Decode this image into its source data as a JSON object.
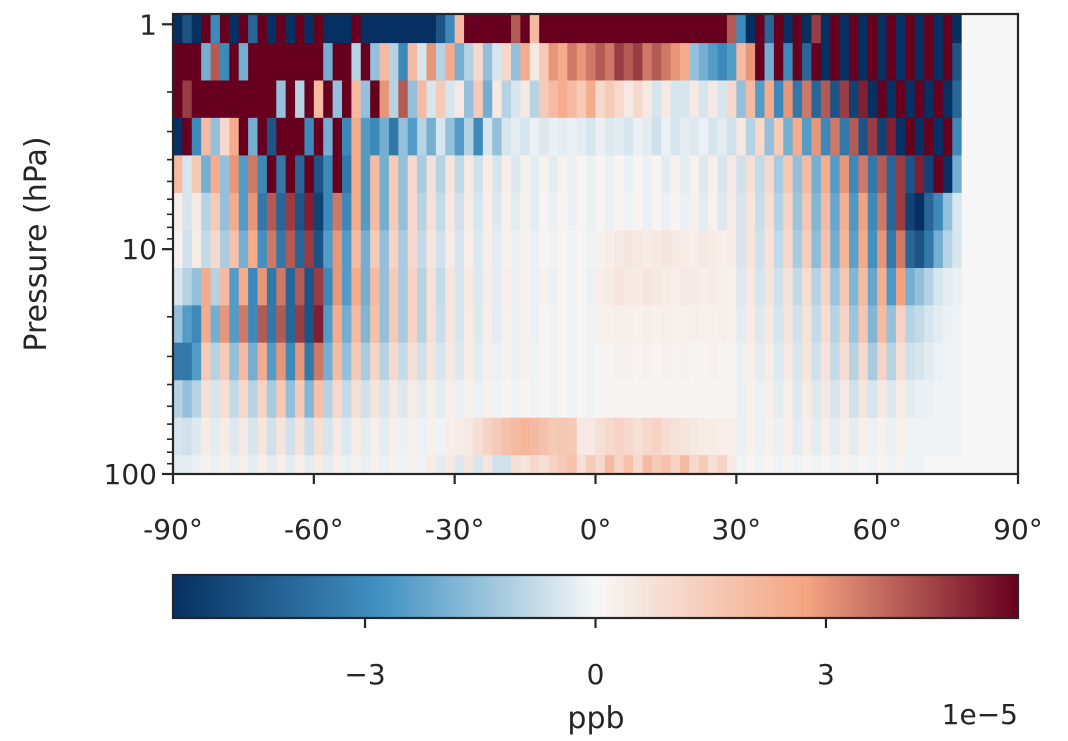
{
  "chart_data": {
    "type": "heatmap",
    "title": "",
    "xlabel": "",
    "ylabel": "Pressure (hPa)",
    "colorbar_label": "ppb",
    "colorbar_scale_text": "1e−5",
    "colormap": "RdBu_r",
    "colors": {
      "neg_max": "#053061",
      "neg_mid": "#4393c3",
      "neutral": "#f7f7f7",
      "pos_mid": "#f4a582",
      "pos_max": "#67001f"
    },
    "xlim": [
      -90,
      90
    ],
    "ylim": [
      100,
      0.9
    ],
    "yscale": "log",
    "vlim": [
      -5.5,
      5.5
    ],
    "value_scale": 1e-05,
    "x_ticks": [
      {
        "value": -90,
        "label": "-90°"
      },
      {
        "value": -60,
        "label": "-60°"
      },
      {
        "value": -30,
        "label": "-30°"
      },
      {
        "value": 0,
        "label": "0°"
      },
      {
        "value": 30,
        "label": "30°"
      },
      {
        "value": 60,
        "label": "60°"
      },
      {
        "value": 90,
        "label": "90°"
      }
    ],
    "y_ticks": [
      {
        "value": 1,
        "label": "1"
      },
      {
        "value": 10,
        "label": "10"
      },
      {
        "value": 100,
        "label": "100"
      }
    ],
    "colorbar_ticks": [
      {
        "value": -3,
        "label": "−3"
      },
      {
        "value": 0,
        "label": "0"
      },
      {
        "value": 3,
        "label": "3"
      }
    ],
    "grid": false,
    "latitudes": [
      -89,
      -87,
      -85,
      -83,
      -81,
      -79,
      -77,
      -75,
      -73,
      -71,
      -69,
      -67,
      -65,
      -63,
      -61,
      -59,
      -57,
      -55,
      -53,
      -51,
      -49,
      -47,
      -45,
      -43,
      -41,
      -39,
      -37,
      -35,
      -33,
      -31,
      -29,
      -27,
      -25,
      -23,
      -21,
      -19,
      -17,
      -15,
      -13,
      -11,
      -9,
      -7,
      -5,
      -3,
      -1,
      1,
      3,
      5,
      7,
      9,
      11,
      13,
      15,
      17,
      19,
      21,
      23,
      25,
      27,
      29,
      31,
      33,
      35,
      37,
      39,
      41,
      43,
      45,
      47,
      49,
      51,
      53,
      55,
      57,
      59,
      61,
      63,
      65,
      67,
      69,
      71,
      73,
      75,
      77,
      79,
      81,
      83,
      85,
      87,
      89
    ],
    "pressure_levels": [
      1,
      1.47,
      2.15,
      3.16,
      4.64,
      6.81,
      10,
      14.7,
      21.5,
      31.6,
      46.4,
      68.1,
      100
    ],
    "values": [
      [
        -5.5,
        -4.5,
        -5.5,
        5.5,
        -3.0,
        5.5,
        -5.5,
        5.5,
        -4.0,
        5.5,
        -5.5,
        5.5,
        -5.5,
        5.5,
        -5.5,
        5.5,
        -5.5,
        -5.5,
        -5.5,
        5.5,
        -5.5,
        -5.5,
        -5.5,
        -5.5,
        -5.5,
        -5.5,
        -5.5,
        -5.5,
        -4.5,
        -3.0,
        2.0,
        5.5,
        5.5,
        5.5,
        5.5,
        5.5,
        4.0,
        5.5,
        2.0,
        5.5,
        5.5,
        5.5,
        5.5,
        5.5,
        5.5,
        5.5,
        5.5,
        5.5,
        5.5,
        5.5,
        5.5,
        5.5,
        5.5,
        5.5,
        5.5,
        5.5,
        5.5,
        5.5,
        5.5,
        4.0,
        -3.0,
        -5.5,
        5.5,
        -4.0,
        5.5,
        -5.5,
        5.5,
        -5.5,
        4.5,
        -5.5,
        5.5,
        -5.5,
        5.5,
        -5.5,
        5.5,
        -5.5,
        5.5,
        -5.5,
        5.5,
        -5.5,
        5.5,
        -5.5,
        5.5,
        -5.5,
        0.0,
        0.0,
        0.0,
        0.0,
        0.0,
        0.0
      ],
      [
        5.5,
        5.5,
        5.5,
        -2.0,
        4.0,
        -3.0,
        5.5,
        -2.0,
        5.5,
        5.5,
        5.5,
        5.5,
        5.5,
        5.5,
        5.5,
        5.5,
        -2.0,
        5.5,
        5.5,
        -1.0,
        5.5,
        -1.5,
        2.0,
        -1.0,
        -3.0,
        2.0,
        -0.5,
        3.0,
        -1.0,
        2.5,
        -2.0,
        -1.0,
        1.0,
        -1.5,
        -0.5,
        1.0,
        -1.5,
        2.5,
        0.5,
        1.5,
        3.0,
        2.5,
        3.5,
        3.0,
        3.5,
        4.0,
        3.5,
        4.5,
        4.0,
        4.5,
        3.5,
        4.0,
        3.5,
        3.0,
        2.5,
        -1.5,
        -2.0,
        -2.5,
        -3.0,
        -2.5,
        2.0,
        3.0,
        5.5,
        -2.0,
        5.5,
        -3.0,
        5.5,
        -4.0,
        5.5,
        -5.5,
        5.5,
        -5.5,
        5.5,
        -5.5,
        5.5,
        -5.5,
        5.5,
        -5.5,
        5.5,
        -5.5,
        5.5,
        -5.5,
        5.5,
        -4.5,
        0.0,
        0.0,
        0.0,
        0.0,
        0.0,
        0.0
      ],
      [
        5.5,
        4.5,
        5.5,
        5.5,
        5.5,
        5.5,
        5.5,
        5.5,
        5.5,
        5.5,
        5.5,
        -1.5,
        5.5,
        -1.0,
        5.5,
        2.0,
        5.5,
        -1.5,
        5.5,
        2.0,
        -1.5,
        5.5,
        3.0,
        -1.0,
        4.0,
        -1.5,
        2.0,
        -0.5,
        1.5,
        -0.5,
        0.5,
        -1.5,
        1.5,
        -2.0,
        0.5,
        -1.0,
        -0.5,
        0.5,
        -1.0,
        1.5,
        2.0,
        2.5,
        2.0,
        1.5,
        2.5,
        1.0,
        1.5,
        1.0,
        0.5,
        1.0,
        0.5,
        -0.5,
        0.5,
        -0.5,
        -0.5,
        0.5,
        -0.5,
        0.5,
        -0.5,
        1.0,
        -1.5,
        2.0,
        -2.5,
        2.5,
        -3.0,
        3.0,
        -3.5,
        3.5,
        -4.0,
        4.0,
        -4.5,
        4.5,
        -5.0,
        5.0,
        -5.5,
        5.5,
        -5.5,
        5.5,
        -5.5,
        5.5,
        -5.5,
        5.5,
        -5.5,
        -4.0,
        0.0,
        0.0,
        0.0,
        0.0,
        0.0,
        0.0
      ],
      [
        -5.5,
        5.5,
        -3.0,
        2.0,
        -1.5,
        1.0,
        2.5,
        5.5,
        -2.0,
        5.5,
        -4.5,
        5.5,
        5.5,
        5.5,
        -3.0,
        5.5,
        -2.0,
        5.5,
        -3.0,
        2.5,
        -2.5,
        -3.0,
        -2.0,
        -3.5,
        -1.5,
        -2.5,
        -1.0,
        -2.0,
        -0.5,
        -1.5,
        -2.5,
        -1.0,
        -3.0,
        -0.5,
        -1.5,
        -0.5,
        -0.3,
        -0.5,
        -0.2,
        -0.4,
        -0.2,
        -0.3,
        -0.2,
        -0.3,
        -0.5,
        -0.2,
        -0.4,
        -0.3,
        -0.5,
        -0.2,
        -0.3,
        -0.6,
        -0.2,
        -0.5,
        -0.3,
        -0.4,
        -0.2,
        -0.5,
        -0.3,
        -0.6,
        0.5,
        -1.0,
        1.0,
        -1.5,
        1.5,
        -2.0,
        2.5,
        -2.5,
        3.0,
        -3.0,
        3.5,
        -3.5,
        4.0,
        -4.5,
        4.5,
        -5.0,
        5.0,
        -5.5,
        5.5,
        -5.5,
        5.5,
        -5.5,
        5.5,
        -3.0,
        0.0,
        0.0,
        0.0,
        0.0,
        0.0,
        0.0
      ],
      [
        2.0,
        -0.5,
        1.5,
        -2.0,
        2.5,
        -1.5,
        3.0,
        -2.5,
        3.5,
        -3.0,
        5.5,
        -3.5,
        5.5,
        -4.0,
        5.5,
        -4.5,
        -3.0,
        5.5,
        -3.5,
        2.5,
        -2.5,
        2.0,
        -2.0,
        1.5,
        -1.5,
        1.0,
        -1.2,
        0.8,
        -1.0,
        0.6,
        -0.8,
        0.5,
        -0.6,
        0.4,
        -0.5,
        0.3,
        -0.4,
        0.2,
        -0.3,
        0.2,
        -0.3,
        0.2,
        -0.2,
        0.1,
        -0.2,
        0.1,
        -0.2,
        0.1,
        -0.2,
        0.1,
        -0.2,
        0.1,
        -0.3,
        0.2,
        -0.3,
        0.2,
        -0.4,
        0.3,
        -0.5,
        0.5,
        -0.6,
        0.8,
        -0.8,
        1.0,
        -1.2,
        1.5,
        -1.5,
        2.0,
        -2.0,
        2.5,
        -2.5,
        3.0,
        -3.0,
        3.5,
        -3.5,
        4.0,
        -4.0,
        4.5,
        -4.5,
        5.0,
        -5.0,
        5.5,
        -5.5,
        -2.0,
        0.0,
        0.0,
        0.0,
        0.0,
        0.0,
        0.0
      ],
      [
        0.3,
        -0.5,
        0.5,
        -1.0,
        1.5,
        -1.5,
        2.5,
        -2.5,
        3.0,
        -3.5,
        4.0,
        -4.0,
        4.5,
        -4.5,
        5.0,
        -5.0,
        -3.0,
        3.5,
        -3.0,
        2.5,
        -2.5,
        2.0,
        -2.0,
        1.5,
        -1.5,
        1.0,
        -1.0,
        0.8,
        -0.8,
        0.5,
        -0.6,
        0.4,
        -0.5,
        0.3,
        -0.4,
        0.2,
        -0.3,
        0.2,
        -0.3,
        0.1,
        -0.2,
        0.1,
        -0.2,
        0.1,
        -0.2,
        0.1,
        -0.2,
        0.1,
        -0.1,
        0.1,
        -0.2,
        0.1,
        -0.2,
        0.1,
        -0.2,
        0.2,
        -0.3,
        0.2,
        -0.4,
        0.4,
        -0.5,
        0.6,
        -0.7,
        0.8,
        -1.0,
        1.2,
        -1.4,
        1.6,
        -1.8,
        2.0,
        -2.2,
        2.4,
        -2.6,
        2.8,
        -3.0,
        3.5,
        -4.0,
        4.5,
        -5.0,
        -5.5,
        -4.0,
        -3.0,
        -1.5,
        -0.5,
        0.0,
        0.0,
        0.0,
        0.0,
        0.0,
        0.0
      ],
      [
        0.2,
        -0.6,
        0.4,
        -0.8,
        1.0,
        -1.2,
        1.8,
        -2.0,
        2.5,
        -2.8,
        3.5,
        -3.5,
        4.0,
        -4.0,
        4.5,
        -4.5,
        -2.5,
        3.0,
        -2.5,
        2.0,
        -2.0,
        1.5,
        -1.5,
        1.2,
        -1.2,
        1.0,
        -0.8,
        0.6,
        -0.6,
        0.4,
        -0.5,
        0.3,
        -0.4,
        0.3,
        -0.3,
        0.2,
        -0.2,
        0.2,
        -0.2,
        0.1,
        -0.1,
        0.1,
        -0.1,
        0.1,
        -0.1,
        0.2,
        0.3,
        0.5,
        0.6,
        0.5,
        0.4,
        0.5,
        0.6,
        0.5,
        0.4,
        0.3,
        0.5,
        0.4,
        0.3,
        0.4,
        -0.5,
        0.6,
        -0.6,
        0.7,
        -0.8,
        1.0,
        -1.2,
        1.4,
        -1.6,
        1.8,
        -2.0,
        2.2,
        -2.4,
        2.6,
        -2.8,
        3.0,
        -3.5,
        3.5,
        -4.0,
        -4.5,
        -3.5,
        -2.0,
        -1.0,
        -0.5,
        0.0,
        0.0,
        0.0,
        0.0,
        0.0,
        0.0
      ],
      [
        -0.5,
        -1.0,
        -1.5,
        2.5,
        -1.0,
        2.0,
        -2.5,
        2.5,
        -3.0,
        3.0,
        -3.5,
        3.5,
        -4.0,
        4.0,
        -4.5,
        4.5,
        -3.0,
        3.0,
        -2.5,
        2.5,
        -2.0,
        2.0,
        -1.5,
        1.5,
        -1.2,
        1.2,
        -1.0,
        0.8,
        -0.8,
        0.6,
        -0.5,
        0.5,
        -0.4,
        0.4,
        -0.3,
        0.3,
        -0.2,
        0.2,
        -0.2,
        0.2,
        -0.2,
        0.1,
        -0.1,
        0.1,
        -0.2,
        0.3,
        0.4,
        0.6,
        0.5,
        0.4,
        0.6,
        0.5,
        0.4,
        0.3,
        0.5,
        0.4,
        0.3,
        0.4,
        0.3,
        0.2,
        -0.4,
        0.5,
        -0.5,
        0.6,
        -0.6,
        0.7,
        -0.8,
        0.9,
        -1.0,
        1.2,
        -1.4,
        1.6,
        -1.8,
        2.0,
        -2.2,
        2.4,
        -2.6,
        2.8,
        -2.0,
        -1.5,
        -1.0,
        -0.5,
        -0.3,
        -0.2,
        0.0,
        0.0,
        0.0,
        0.0,
        0.0,
        0.0
      ],
      [
        -1.5,
        -2.5,
        -3.0,
        2.5,
        -2.0,
        3.0,
        -2.5,
        3.5,
        -3.0,
        4.0,
        -3.5,
        4.0,
        -4.0,
        4.5,
        -4.5,
        5.0,
        -2.5,
        2.5,
        -2.0,
        2.0,
        -1.8,
        1.8,
        -1.5,
        1.5,
        -1.2,
        1.2,
        -1.0,
        0.8,
        -0.7,
        0.6,
        -0.5,
        0.4,
        -0.4,
        0.3,
        -0.3,
        0.2,
        -0.2,
        0.2,
        -0.2,
        0.1,
        -0.1,
        0.1,
        -0.1,
        0.1,
        -0.1,
        0.2,
        0.2,
        0.3,
        0.3,
        0.2,
        0.3,
        0.2,
        0.3,
        0.2,
        0.2,
        0.3,
        0.2,
        0.2,
        0.3,
        0.2,
        -0.3,
        0.4,
        -0.4,
        0.5,
        -0.5,
        0.6,
        -0.6,
        0.7,
        -0.8,
        0.9,
        -1.0,
        1.2,
        -1.4,
        1.6,
        -1.8,
        2.0,
        -1.5,
        1.2,
        -1.0,
        -0.8,
        -0.5,
        -0.3,
        -0.2,
        -0.1,
        0.0,
        0.0,
        0.0,
        0.0,
        0.0,
        0.0
      ],
      [
        -3.5,
        -3.5,
        -2.5,
        1.5,
        -1.0,
        1.5,
        -1.5,
        2.0,
        -2.0,
        2.5,
        -2.5,
        3.0,
        -3.0,
        3.0,
        -3.5,
        3.5,
        -2.0,
        2.0,
        -1.5,
        1.5,
        -1.2,
        1.2,
        -1.0,
        1.0,
        -0.8,
        0.8,
        -0.6,
        0.6,
        -0.5,
        0.5,
        -0.4,
        0.4,
        -0.3,
        0.3,
        -0.2,
        0.2,
        -0.2,
        0.2,
        -0.1,
        0.1,
        -0.1,
        0.1,
        -0.1,
        0.1,
        -0.1,
        0.1,
        0.1,
        0.2,
        0.2,
        0.1,
        0.2,
        0.1,
        0.2,
        0.1,
        0.2,
        0.1,
        0.1,
        0.2,
        0.1,
        0.1,
        -0.2,
        0.3,
        -0.3,
        0.4,
        -0.4,
        0.5,
        -0.5,
        0.6,
        -0.6,
        0.7,
        -0.8,
        0.9,
        -1.0,
        1.0,
        -1.2,
        1.2,
        -1.0,
        0.8,
        -0.6,
        -0.5,
        -0.3,
        -0.2,
        -0.1,
        -0.1,
        0.0,
        0.0,
        0.0,
        0.0,
        0.0,
        0.0
      ],
      [
        -1.0,
        -1.5,
        -1.0,
        0.8,
        -0.5,
        0.8,
        -0.8,
        1.0,
        -1.0,
        1.2,
        -1.2,
        1.5,
        -1.5,
        1.5,
        -1.8,
        1.8,
        -1.0,
        1.0,
        -0.8,
        0.8,
        -0.6,
        0.6,
        -0.5,
        0.5,
        -0.4,
        0.4,
        -0.3,
        0.3,
        -0.3,
        0.3,
        -0.2,
        0.2,
        -0.2,
        0.2,
        -0.1,
        0.1,
        -0.1,
        0.1,
        -0.1,
        0.1,
        -0.1,
        0.1,
        -0.1,
        0.1,
        -0.1,
        0.1,
        0.1,
        0.1,
        0.1,
        0.1,
        0.1,
        0.1,
        0.1,
        0.1,
        0.1,
        0.1,
        0.1,
        0.1,
        0.1,
        0.1,
        -0.2,
        0.2,
        -0.2,
        0.3,
        -0.3,
        0.3,
        -0.4,
        0.4,
        -0.4,
        0.5,
        -0.5,
        0.5,
        -0.6,
        0.6,
        -0.5,
        0.5,
        -0.4,
        0.4,
        -0.3,
        -0.2,
        -0.2,
        -0.1,
        -0.1,
        -0.1,
        0.0,
        0.0,
        0.0,
        0.0,
        0.0,
        0.0
      ],
      [
        -0.5,
        -0.6,
        -0.4,
        0.4,
        -0.3,
        0.4,
        -0.4,
        0.5,
        -0.5,
        0.6,
        -0.6,
        0.6,
        -0.6,
        0.7,
        -0.7,
        0.8,
        -0.5,
        0.5,
        -0.4,
        0.4,
        -0.3,
        0.3,
        -0.3,
        0.3,
        -0.2,
        0.2,
        -0.2,
        0.2,
        -0.1,
        0.3,
        0.4,
        0.5,
        0.8,
        1.2,
        1.5,
        1.8,
        2.0,
        2.2,
        2.0,
        1.8,
        1.5,
        1.6,
        1.5,
        0.5,
        0.5,
        0.8,
        1.0,
        1.2,
        1.0,
        0.8,
        1.0,
        1.2,
        0.9,
        0.7,
        0.6,
        0.5,
        0.4,
        0.4,
        0.3,
        0.3,
        -0.2,
        0.2,
        -0.2,
        0.2,
        -0.2,
        0.3,
        -0.3,
        0.3,
        -0.3,
        0.3,
        -0.3,
        0.3,
        -0.3,
        0.3,
        -0.2,
        0.2,
        -0.2,
        0.2,
        -0.1,
        -0.1,
        -0.1,
        -0.1,
        -0.1,
        -0.1,
        0.0,
        0.0,
        0.0,
        0.0,
        0.0,
        0.0
      ],
      [
        -0.3,
        -0.3,
        -0.2,
        0.2,
        -0.2,
        0.2,
        -0.2,
        0.3,
        -0.3,
        0.3,
        -0.3,
        0.3,
        -0.3,
        0.3,
        -0.3,
        0.4,
        -0.3,
        0.3,
        -0.2,
        0.2,
        -0.2,
        0.2,
        -0.2,
        0.2,
        -0.1,
        0.2,
        -0.1,
        0.4,
        -0.3,
        0.5,
        -0.4,
        0.6,
        -0.5,
        0.6,
        -0.6,
        -0.6,
        0.8,
        0.6,
        1.0,
        0.8,
        1.2,
        1.5,
        1.8,
        0.8,
        1.5,
        1.0,
        2.0,
        1.2,
        1.8,
        1.0,
        2.0,
        1.5,
        1.8,
        1.2,
        2.0,
        1.0,
        1.5,
        0.8,
        1.2,
        0.5,
        -0.1,
        0.1,
        -0.1,
        0.1,
        -0.1,
        0.1,
        -0.1,
        0.1,
        -0.1,
        0.1,
        -0.1,
        0.1,
        -0.1,
        0.1,
        -0.1,
        0.1,
        -0.1,
        0.1,
        -0.1,
        -0.1,
        0.0,
        0.0,
        0.0,
        0.0,
        0.0,
        0.0,
        0.0,
        0.0,
        0.0,
        0.0
      ]
    ]
  }
}
